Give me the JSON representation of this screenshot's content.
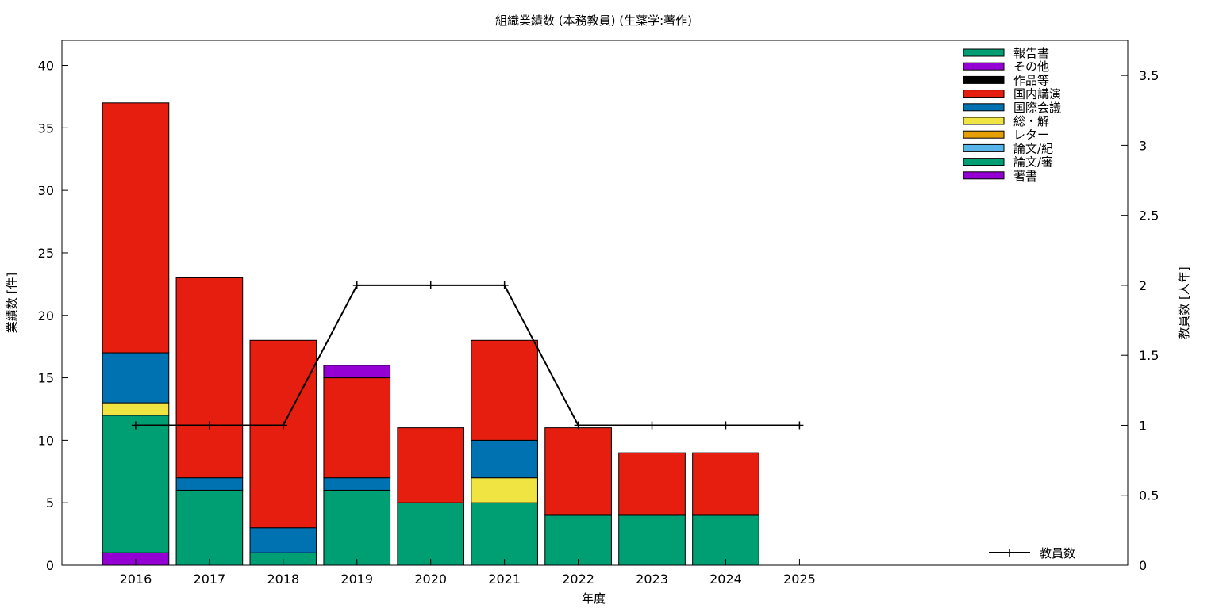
{
  "chart_data": {
    "type": "bar",
    "title": "組織業績数 (本務教員) (生薬学:著作)",
    "xlabel": "年度",
    "ylabel": "業績数 [件]",
    "y2label": "教員数 [人年]",
    "categories": [
      "2016",
      "2017",
      "2018",
      "2019",
      "2020",
      "2021",
      "2022",
      "2023",
      "2024",
      "2025"
    ],
    "ylim": [
      0,
      42
    ],
    "y2lim": [
      0,
      3.75
    ],
    "yticks": [
      "0",
      "5",
      "10",
      "15",
      "20",
      "25",
      "30",
      "35",
      "40"
    ],
    "y2ticks": [
      "0",
      "0.5",
      "1",
      "1.5",
      "2",
      "2.5",
      "3",
      "3.5"
    ],
    "stacked": true,
    "grid": false,
    "legend_position": "top-right",
    "series": [
      {
        "name": "著書",
        "color": "#9400d3",
        "values": [
          1,
          0,
          0,
          0,
          0,
          0,
          0,
          0,
          0,
          0
        ]
      },
      {
        "name": "論文/審",
        "color": "#009e73",
        "values": [
          11,
          6,
          1,
          6,
          5,
          5,
          4,
          4,
          4,
          0
        ]
      },
      {
        "name": "論文/紀",
        "color": "#56b4e9",
        "values": [
          0,
          0,
          0,
          0,
          0,
          0,
          0,
          0,
          0,
          0
        ]
      },
      {
        "name": "レター",
        "color": "#e69f00",
        "values": [
          0,
          0,
          0,
          0,
          0,
          0,
          0,
          0,
          0,
          0
        ]
      },
      {
        "name": "総・解",
        "color": "#f0e442",
        "values": [
          1,
          0,
          0,
          0,
          0,
          2,
          0,
          0,
          0,
          0
        ]
      },
      {
        "name": "国際会議",
        "color": "#0072b2",
        "values": [
          4,
          1,
          2,
          1,
          0,
          3,
          0,
          0,
          0,
          0
        ]
      },
      {
        "name": "国内講演",
        "color": "#e51e10",
        "values": [
          20,
          16,
          15,
          8,
          6,
          8,
          7,
          5,
          5,
          0
        ]
      },
      {
        "name": "作品等",
        "color": "#000000",
        "values": [
          0,
          0,
          0,
          0,
          0,
          0,
          0,
          0,
          0,
          0
        ]
      },
      {
        "name": "その他",
        "color": "#9400d3",
        "values": [
          0,
          0,
          0,
          1,
          0,
          0,
          0,
          0,
          0,
          0
        ]
      },
      {
        "name": "報告書",
        "color": "#009e73",
        "values": [
          0,
          0,
          0,
          0,
          0,
          0,
          0,
          0,
          0,
          0
        ]
      }
    ],
    "line_series": {
      "name": "教員数",
      "color": "#000000",
      "axis": "y2",
      "values": [
        1,
        1,
        1,
        2,
        2,
        2,
        1,
        1,
        1,
        1
      ]
    }
  }
}
